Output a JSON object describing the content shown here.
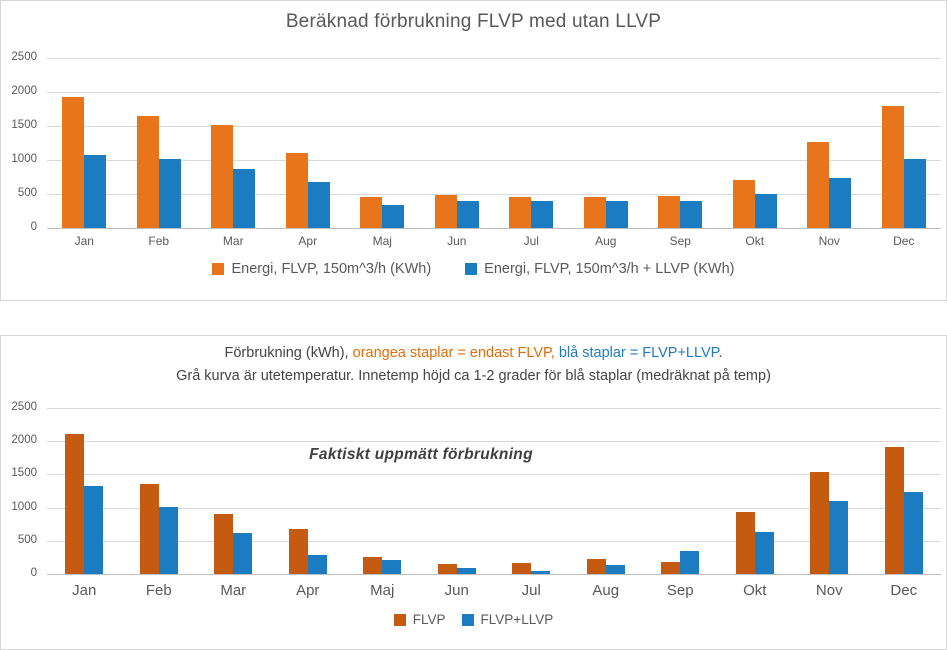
{
  "chart_data": [
    {
      "type": "bar",
      "title": "Beräknad förbrukning FLVP med utan LLVP",
      "categories": [
        "Jan",
        "Feb",
        "Mar",
        "Apr",
        "Maj",
        "Jun",
        "Jul",
        "Aug",
        "Sep",
        "Okt",
        "Nov",
        "Dec"
      ],
      "series": [
        {
          "name": "Energi, FLVP, 150m^3/h (KWh)",
          "color": "#e8751c",
          "values": [
            1930,
            1650,
            1510,
            1110,
            450,
            480,
            460,
            455,
            470,
            700,
            1270,
            1790
          ]
        },
        {
          "name": "Energi, FLVP, 150m^3/h + LLVP (KWh)",
          "color": "#1b7cc2",
          "values": [
            1080,
            1010,
            870,
            670,
            340,
            400,
            400,
            400,
            395,
            500,
            740,
            1020
          ]
        }
      ],
      "xlabel": "",
      "ylabel": "",
      "ylim": [
        0,
        2500
      ],
      "yticks": [
        0,
        500,
        1000,
        1500,
        2000,
        2500
      ],
      "grid": true,
      "legend_position": "bottom"
    },
    {
      "type": "bar",
      "title_line1_parts": [
        {
          "text": "Förbrukning (kWh), ",
          "color": "#454545"
        },
        {
          "text": "orangea staplar = endast FLVP,",
          "color": "#e36c09"
        },
        {
          "text": " blå staplar = FLVP+LLVP",
          "color": "#1f7cc4"
        },
        {
          "text": ".",
          "color": "#454545"
        }
      ],
      "title_line2": "Grå kurva är utetemperatur. Innetemp höjd ca 1-2 grader för blå staplar (medräknat på temp)",
      "annotation": "Faktiskt uppmätt förbrukning",
      "categories": [
        "Jan",
        "Feb",
        "Mar",
        "Apr",
        "Maj",
        "Jun",
        "Jul",
        "Aug",
        "Sep",
        "Okt",
        "Nov",
        "Dec"
      ],
      "series": [
        {
          "name": "FLVP",
          "color": "#c55a11",
          "values": [
            2110,
            1360,
            910,
            680,
            260,
            150,
            160,
            220,
            180,
            930,
            1540,
            1910
          ]
        },
        {
          "name": "FLVP+LLVP",
          "color": "#1b7cc2",
          "values": [
            1320,
            1010,
            620,
            290,
            210,
            90,
            50,
            130,
            350,
            640,
            1100,
            1240
          ]
        }
      ],
      "xlabel": "",
      "ylabel": "",
      "ylim": [
        0,
        2500
      ],
      "yticks": [
        0,
        500,
        1000,
        1500,
        2000,
        2500
      ],
      "grid": true,
      "legend_position": "bottom"
    }
  ]
}
